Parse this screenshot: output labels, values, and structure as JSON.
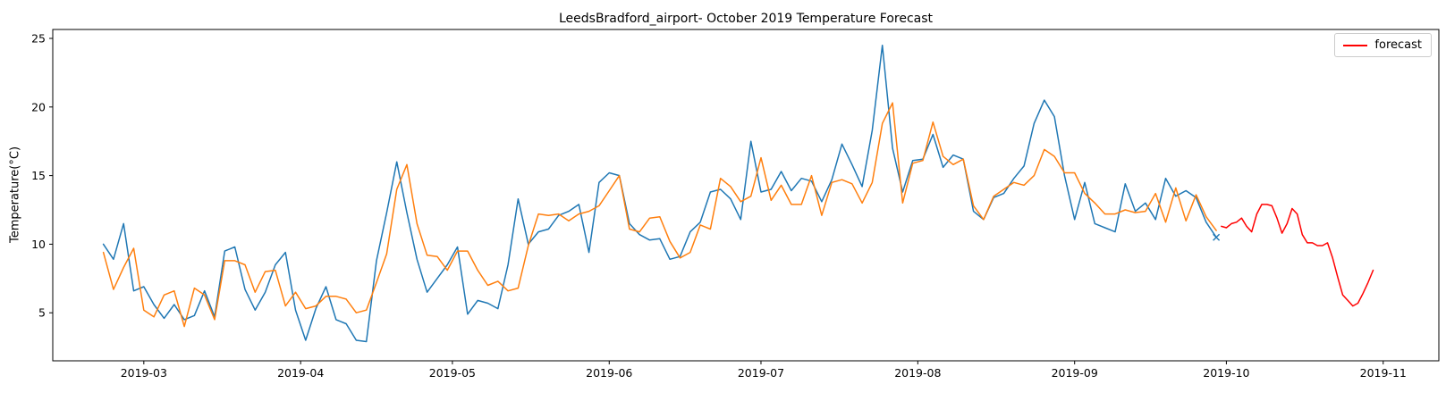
{
  "chart_data": {
    "type": "line",
    "title": "LeedsBradford_airport- October 2019 Temperature Forecast",
    "xlabel": "",
    "ylabel": "Temperature(°C)",
    "grid": false,
    "xlim": [
      "2019-02-11",
      "2019-11-12"
    ],
    "ylim": [
      1.5,
      25.65
    ],
    "y_ticks": [
      5,
      10,
      15,
      20,
      25
    ],
    "x_ticks": [
      {
        "label": "2019-03",
        "date": "2019-03-01"
      },
      {
        "label": "2019-04",
        "date": "2019-04-01"
      },
      {
        "label": "2019-05",
        "date": "2019-05-01"
      },
      {
        "label": "2019-06",
        "date": "2019-06-01"
      },
      {
        "label": "2019-07",
        "date": "2019-07-01"
      },
      {
        "label": "2019-08",
        "date": "2019-08-01"
      },
      {
        "label": "2019-09",
        "date": "2019-09-01"
      },
      {
        "label": "2019-10",
        "date": "2019-10-01"
      },
      {
        "label": "2019-11",
        "date": "2019-11-01"
      }
    ],
    "legend": {
      "position": "upper right",
      "entries": [
        {
          "label": "forecast",
          "color": "#ff0000"
        }
      ]
    },
    "series": [
      {
        "name": "observed-temperature-blue",
        "color": "#1f77b4",
        "start_date": "2019-02-21",
        "step_days": 2,
        "values": [
          10.0,
          8.9,
          11.5,
          6.6,
          6.9,
          5.6,
          4.6,
          5.6,
          4.5,
          4.8,
          6.6,
          4.7,
          9.5,
          9.8,
          6.7,
          5.2,
          6.5,
          8.5,
          9.4,
          5.2,
          3.0,
          5.3,
          6.9,
          4.5,
          4.2,
          3.0,
          2.9,
          8.8,
          12.3,
          16.0,
          12.3,
          8.9,
          6.5,
          7.5,
          8.5,
          9.8,
          4.9,
          5.9,
          5.7,
          5.3,
          8.5,
          13.3,
          10.0,
          10.9,
          11.1,
          12.1,
          12.4,
          12.9,
          9.4,
          14.5,
          15.2,
          15.0,
          11.5,
          10.7,
          10.3,
          10.4,
          8.9,
          9.1,
          10.9,
          11.6,
          13.8,
          14.0,
          13.3,
          11.8,
          17.5,
          13.8,
          14.0,
          15.3,
          13.9,
          14.8,
          14.6,
          13.1,
          14.7,
          17.3,
          15.8,
          14.2,
          18.3,
          24.5,
          17.0,
          13.8,
          16.1,
          16.2,
          18.0,
          15.6,
          16.5,
          16.2,
          12.4,
          11.8,
          13.4,
          13.7,
          14.8,
          15.7,
          18.8,
          20.5,
          19.3,
          15.0,
          11.8,
          14.5,
          11.5,
          11.2,
          10.9,
          14.4,
          12.4,
          13.0,
          11.8,
          14.8,
          13.5,
          13.9,
          13.4,
          11.6,
          10.5
        ]
      },
      {
        "name": "model-temperature-orange",
        "color": "#ff7f0e",
        "start_date": "2019-02-21",
        "step_days": 2,
        "values": [
          9.4,
          6.7,
          8.3,
          9.7,
          5.2,
          4.7,
          6.3,
          6.6,
          4.0,
          6.8,
          6.3,
          4.5,
          8.8,
          8.8,
          8.5,
          6.5,
          8.0,
          8.1,
          5.5,
          6.5,
          5.3,
          5.5,
          6.2,
          6.2,
          6.0,
          5.0,
          5.2,
          7.2,
          9.3,
          14.0,
          15.8,
          11.5,
          9.2,
          9.1,
          8.1,
          9.5,
          9.5,
          8.1,
          7.0,
          7.3,
          6.6,
          6.8,
          9.9,
          12.2,
          12.1,
          12.2,
          11.7,
          12.2,
          12.4,
          12.8,
          13.9,
          15.0,
          11.1,
          10.9,
          11.9,
          12.0,
          10.2,
          9.0,
          9.4,
          11.4,
          11.1,
          14.8,
          14.2,
          13.1,
          13.5,
          16.3,
          13.2,
          14.3,
          12.9,
          12.9,
          15.0,
          12.1,
          14.5,
          14.7,
          14.4,
          13.0,
          14.5,
          18.8,
          20.3,
          13.0,
          15.9,
          16.1,
          18.9,
          16.4,
          15.8,
          16.2,
          12.8,
          11.8,
          13.5,
          14.0,
          14.5,
          14.3,
          15.0,
          16.9,
          16.4,
          15.2,
          15.2,
          13.7,
          13.0,
          12.2,
          12.2,
          12.5,
          12.3,
          12.4,
          13.7,
          11.6,
          14.1,
          11.7,
          13.6,
          12.0,
          11.0
        ]
      },
      {
        "name": "forecast",
        "color": "#ff0000",
        "start_date": "2019-09-30",
        "step_days": 1,
        "values": [
          11.3,
          11.2,
          11.5,
          11.6,
          11.9,
          11.3,
          10.9,
          12.2,
          12.9,
          12.9,
          12.8,
          11.9,
          10.8,
          11.5,
          12.6,
          12.2,
          10.7,
          10.1,
          10.1,
          9.9,
          9.9,
          10.1,
          9.0,
          7.6,
          6.3,
          5.9,
          5.5,
          5.7,
          6.4,
          7.2,
          8.1
        ]
      }
    ],
    "end_marker": {
      "shape": "x",
      "color": "#1f77b4",
      "date": "2019-09-29",
      "value": 10.5
    }
  }
}
